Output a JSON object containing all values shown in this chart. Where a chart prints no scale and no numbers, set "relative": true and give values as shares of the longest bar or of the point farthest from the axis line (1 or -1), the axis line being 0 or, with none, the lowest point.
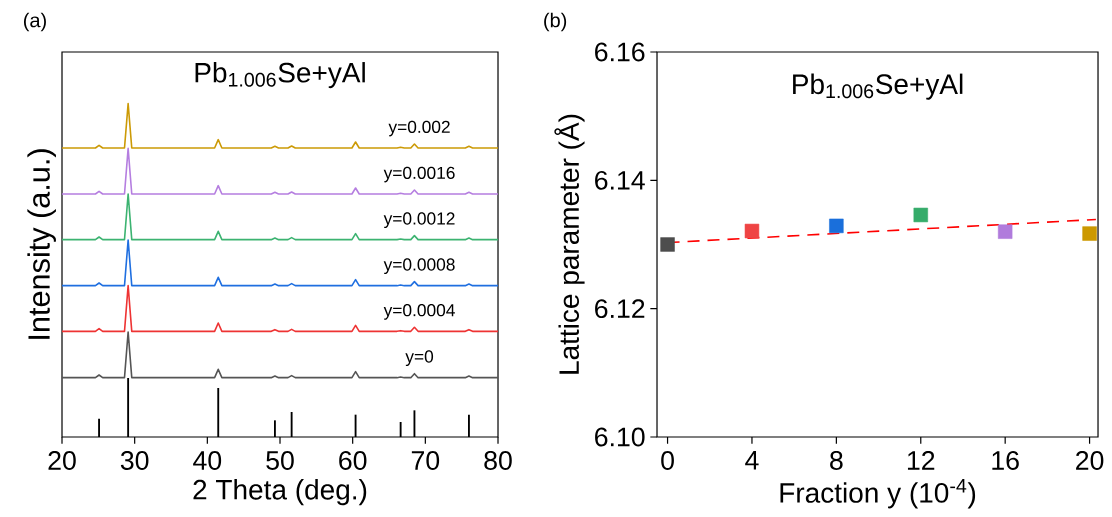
{
  "chart_data": [
    {
      "type": "line",
      "title": "Pb$_{1.006}$Se+yAl",
      "xlabel": "2 Theta (deg.)",
      "ylabel": "Intensity (a.u.)",
      "annotations": [
        "(a)"
      ],
      "relative": true,
      "xlim": [
        20,
        80
      ],
      "xticks": [
        20,
        30,
        40,
        50,
        60,
        70,
        80
      ],
      "x": [
        20,
        24.6,
        25.1,
        25.6,
        28.6,
        29.1,
        29.6,
        41.0,
        41.5,
        42.0,
        48.8,
        49.3,
        49.8,
        51.1,
        51.6,
        52.1,
        59.9,
        60.4,
        60.9,
        66.1,
        66.6,
        67.1,
        68.0,
        68.5,
        69.0,
        75.5,
        76.0,
        76.5,
        80
      ],
      "series": [
        {
          "name": "y=0",
          "color": "#555555",
          "values": [
            0.178,
            0.178,
            0.186,
            0.178,
            0.178,
            0.315,
            0.178,
            0.178,
            0.203,
            0.178,
            0.178,
            0.183,
            0.178,
            0.178,
            0.184,
            0.178,
            0.178,
            0.196,
            0.178,
            0.178,
            0.18,
            0.178,
            0.178,
            0.19,
            0.178,
            0.178,
            0.183,
            0.178,
            0.178
          ]
        },
        {
          "name": "y=0.0004",
          "color": "#ee3333",
          "values": [
            0.317,
            0.317,
            0.325,
            0.317,
            0.317,
            0.454,
            0.317,
            0.317,
            0.342,
            0.317,
            0.317,
            0.322,
            0.317,
            0.317,
            0.323,
            0.317,
            0.317,
            0.335,
            0.317,
            0.317,
            0.319,
            0.317,
            0.317,
            0.329,
            0.317,
            0.317,
            0.322,
            0.317,
            0.317
          ]
        },
        {
          "name": "y=0.0008",
          "color": "#1f6fe0",
          "values": [
            0.454,
            0.454,
            0.462,
            0.454,
            0.454,
            0.591,
            0.454,
            0.454,
            0.479,
            0.454,
            0.454,
            0.459,
            0.454,
            0.454,
            0.46,
            0.454,
            0.454,
            0.472,
            0.454,
            0.454,
            0.456,
            0.454,
            0.454,
            0.466,
            0.454,
            0.454,
            0.459,
            0.454,
            0.454
          ]
        },
        {
          "name": "y=0.0012",
          "color": "#3cb371",
          "values": [
            0.592,
            0.592,
            0.6,
            0.592,
            0.592,
            0.729,
            0.592,
            0.592,
            0.617,
            0.592,
            0.592,
            0.597,
            0.592,
            0.592,
            0.598,
            0.592,
            0.592,
            0.61,
            0.592,
            0.592,
            0.594,
            0.592,
            0.592,
            0.604,
            0.592,
            0.592,
            0.597,
            0.592,
            0.592
          ]
        },
        {
          "name": "y=0.0016",
          "color": "#b57ee0",
          "values": [
            0.729,
            0.729,
            0.737,
            0.729,
            0.729,
            0.866,
            0.729,
            0.729,
            0.754,
            0.729,
            0.729,
            0.734,
            0.729,
            0.729,
            0.735,
            0.729,
            0.729,
            0.747,
            0.729,
            0.729,
            0.731,
            0.729,
            0.729,
            0.741,
            0.729,
            0.729,
            0.734,
            0.729,
            0.729
          ]
        },
        {
          "name": "y=0.002",
          "color": "#cc9a06",
          "values": [
            0.867,
            0.867,
            0.875,
            0.867,
            0.867,
            1.0,
            0.867,
            0.867,
            0.892,
            0.867,
            0.867,
            0.872,
            0.867,
            0.867,
            0.873,
            0.867,
            0.867,
            0.885,
            0.867,
            0.867,
            0.869,
            0.867,
            0.867,
            0.879,
            0.867,
            0.867,
            0.872,
            0.867,
            0.867
          ]
        },
        {
          "type": "bar",
          "color": "#000000",
          "x": [
            25.1,
            29.1,
            41.5,
            49.3,
            51.6,
            60.4,
            66.6,
            68.5,
            76.0
          ],
          "values": [
            0.055,
            0.177,
            0.147,
            0.05,
            0.075,
            0.067,
            0.045,
            0.08,
            0.067
          ]
        }
      ]
    },
    {
      "type": "scatter",
      "title": "Pb$_{1.006}$Se+yAl",
      "xlabel": "Fraction y (10$^{-4}$)",
      "ylabel": "Lattice parameter (Å)",
      "annotations": [
        "(b)"
      ],
      "xlim": [
        -0.5,
        20.4
      ],
      "xticks": [
        0,
        4,
        8,
        12,
        16,
        20
      ],
      "ylim": [
        6.1,
        6.16
      ],
      "yticks": [
        {
          "value": 6.1,
          "label": "6.10"
        },
        {
          "value": 6.12,
          "label": "6.12"
        },
        {
          "value": 6.14,
          "label": "6.14"
        },
        {
          "value": 6.16,
          "label": "6.16"
        }
      ],
      "marker": "square",
      "series": [
        {
          "x": [
            0,
            4,
            8,
            12,
            16,
            20
          ],
          "values": [
            6.13,
            6.1321,
            6.1329,
            6.1346,
            6.132,
            6.1317
          ],
          "colors": [
            "#4d4d4d",
            "#ef4444",
            "#1a6fdb",
            "#35ac6a",
            "#b07bdc",
            "#cc9900"
          ]
        },
        {
          "type": "line",
          "x": [
            0,
            20.3
          ],
          "values": [
            6.1303,
            6.1339
          ],
          "color": "#ff0000",
          "line_style": "dashed",
          "marker": "none"
        }
      ]
    }
  ]
}
